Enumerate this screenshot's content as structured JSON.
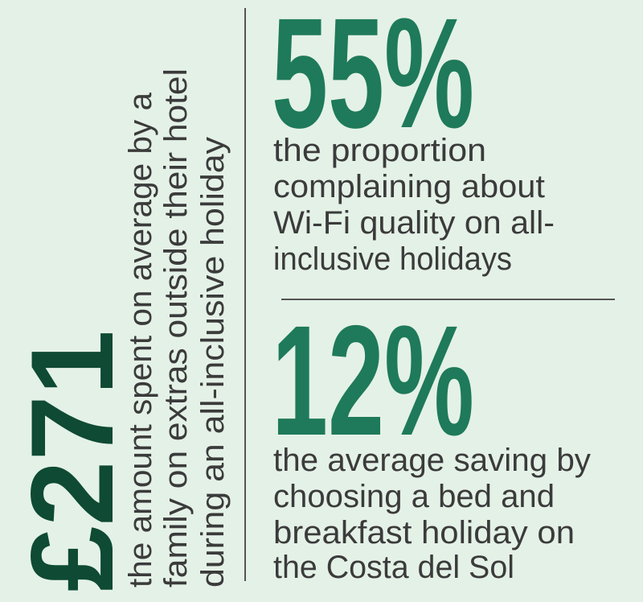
{
  "stats": [
    {
      "figure": "£271",
      "caption": [
        "the amount spent on average by a",
        "family on extras outside their hotel",
        "during an all-inclusive holiday"
      ]
    },
    {
      "figure": "55%",
      "caption": [
        "the proportion",
        "complaining about",
        "Wi-Fi quality on all-",
        "inclusive holidays"
      ]
    },
    {
      "figure": "12%",
      "caption": [
        "the average saving by",
        "choosing a bed and",
        "breakfast holiday on",
        "the Costa del Sol"
      ]
    }
  ]
}
